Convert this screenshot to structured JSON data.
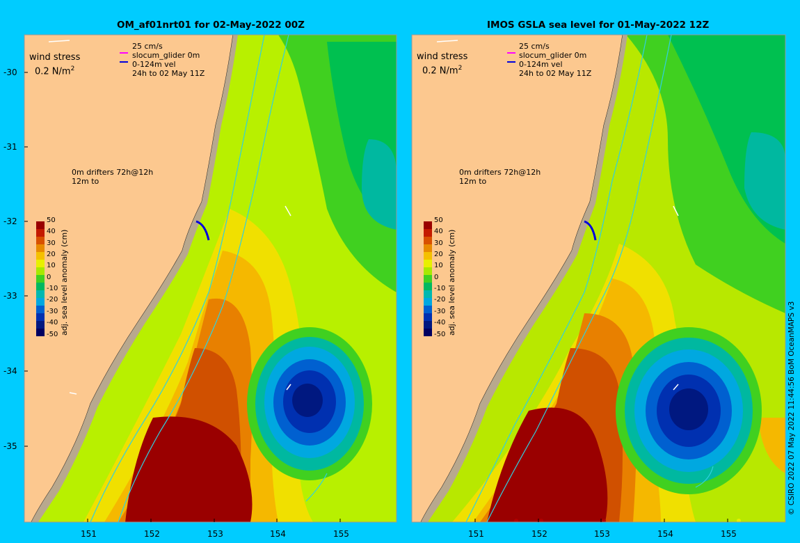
{
  "left_panel": {
    "title": "OM_af01nrt01 for 02-May-2022 00Z",
    "wind_label": "wind stress",
    "wind_value": "0.2 N/m",
    "wind_exp": "2",
    "legend_speed": "25 cm/s",
    "legend_glider": "slocum_glider 0m",
    "legend_vel": "0-124m vel",
    "legend_period": "24h to 02 May 11Z",
    "drifters_line1": "0m  drifters 72h@12h",
    "drifters_line2": "12m  to"
  },
  "right_panel": {
    "title": "IMOS GSLA sea level  for 01-May-2022 12Z",
    "wind_label": "wind stress",
    "wind_value": "0.2 N/m",
    "wind_exp": "2",
    "legend_speed": "25 cm/s",
    "legend_glider": "slocum_glider 0m",
    "legend_vel": "0-124m vel",
    "legend_period": "24h to 02 May 11Z",
    "drifters_line1": "0m  drifters 72h@12h",
    "drifters_line2": "12m  to"
  },
  "colorbar": {
    "title": "adj. sea level anomaly (cm)",
    "labels": [
      "50",
      "40",
      "30",
      "20",
      "10",
      "0",
      "-10",
      "-20",
      "-30",
      "-40",
      "-50"
    ],
    "colors": [
      "#9a0000",
      "#c41a00",
      "#d85000",
      "#e88a00",
      "#f5c000",
      "#e8f000",
      "#a8e800",
      "#40d020",
      "#00b860",
      "#00b8b0",
      "#00a8e0",
      "#0060d0",
      "#0030b0",
      "#001880",
      "#000060"
    ]
  },
  "y_ticks": [
    "-30",
    "-31",
    "-32",
    "-33",
    "-34",
    "-35"
  ],
  "x_ticks": [
    "151",
    "152",
    "153",
    "154",
    "155"
  ],
  "credit": "© CSIRO 2022   07 May 2022 11:44:56 BoM OceanMAPS v3",
  "colors": {
    "background": "#00ccff",
    "land": "#fcc88f",
    "coast_strip": "#b8a88e",
    "glider": "#ff00ff",
    "velocity": "#0000dd",
    "contour": "#30d0e0"
  }
}
